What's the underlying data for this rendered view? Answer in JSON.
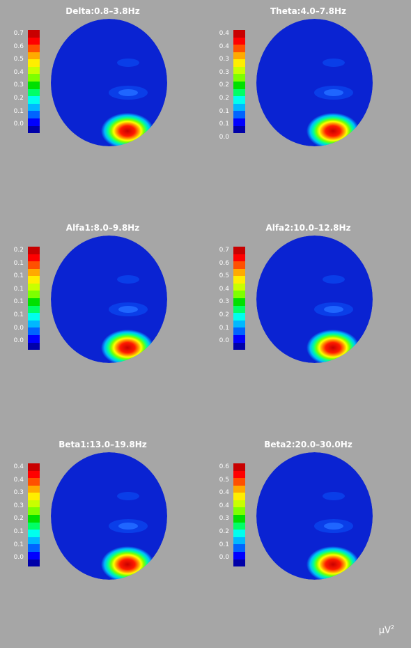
{
  "colors": {
    "background": "#a6a6a6",
    "colormap_top_to_bottom": [
      "#c80000",
      "#ff0000",
      "#ff5000",
      "#ffaa00",
      "#ffee00",
      "#c8ff00",
      "#7dff00",
      "#00e000",
      "#00ff66",
      "#00ffee",
      "#00b8ff",
      "#0064ff",
      "#0000ff",
      "#0000a8"
    ],
    "head_base": "#0a23d2"
  },
  "unit": {
    "text": "μV",
    "superscript": "2"
  },
  "chart_data": [
    {
      "type": "heatmap",
      "title": "Delta:0.8–3.8Hz",
      "colorbar_ticks": [
        "0.7",
        "0.6",
        "0.5",
        "0.4",
        "0.3",
        "0.2",
        "0.1",
        "0.0"
      ],
      "range": [
        0.0,
        0.7
      ]
    },
    {
      "type": "heatmap",
      "title": "Theta:4.0–7.8Hz",
      "colorbar_ticks": [
        "0.4",
        "0.4",
        "0.3",
        "0.3",
        "0.2",
        "0.2",
        "0.1",
        "0.1",
        "0.0"
      ],
      "range": [
        0.0,
        0.4
      ]
    },
    {
      "type": "heatmap",
      "title": "Alfa1:8.0–9.8Hz",
      "colorbar_ticks": [
        "0.2",
        "0.1",
        "0.1",
        "0.1",
        "0.1",
        "0.1",
        "0.0",
        "0.0"
      ],
      "range": [
        0.0,
        0.2
      ]
    },
    {
      "type": "heatmap",
      "title": "Alfa2:10.0–12.8Hz",
      "colorbar_ticks": [
        "0.7",
        "0.6",
        "0.5",
        "0.4",
        "0.3",
        "0.2",
        "0.1",
        "0.0"
      ],
      "range": [
        0.0,
        0.7
      ]
    },
    {
      "type": "heatmap",
      "title": "Beta1:13.0–19.8Hz",
      "colorbar_ticks": [
        "0.4",
        "0.4",
        "0.3",
        "0.3",
        "0.2",
        "0.1",
        "0.1",
        "0.0"
      ],
      "range": [
        0.0,
        0.4
      ]
    },
    {
      "type": "heatmap",
      "title": "Beta2:20.0–30.0Hz",
      "colorbar_ticks": [
        "0.6",
        "0.5",
        "0.4",
        "0.4",
        "0.3",
        "0.2",
        "0.1",
        "0.0"
      ],
      "range": [
        0.0,
        0.6
      ]
    }
  ]
}
